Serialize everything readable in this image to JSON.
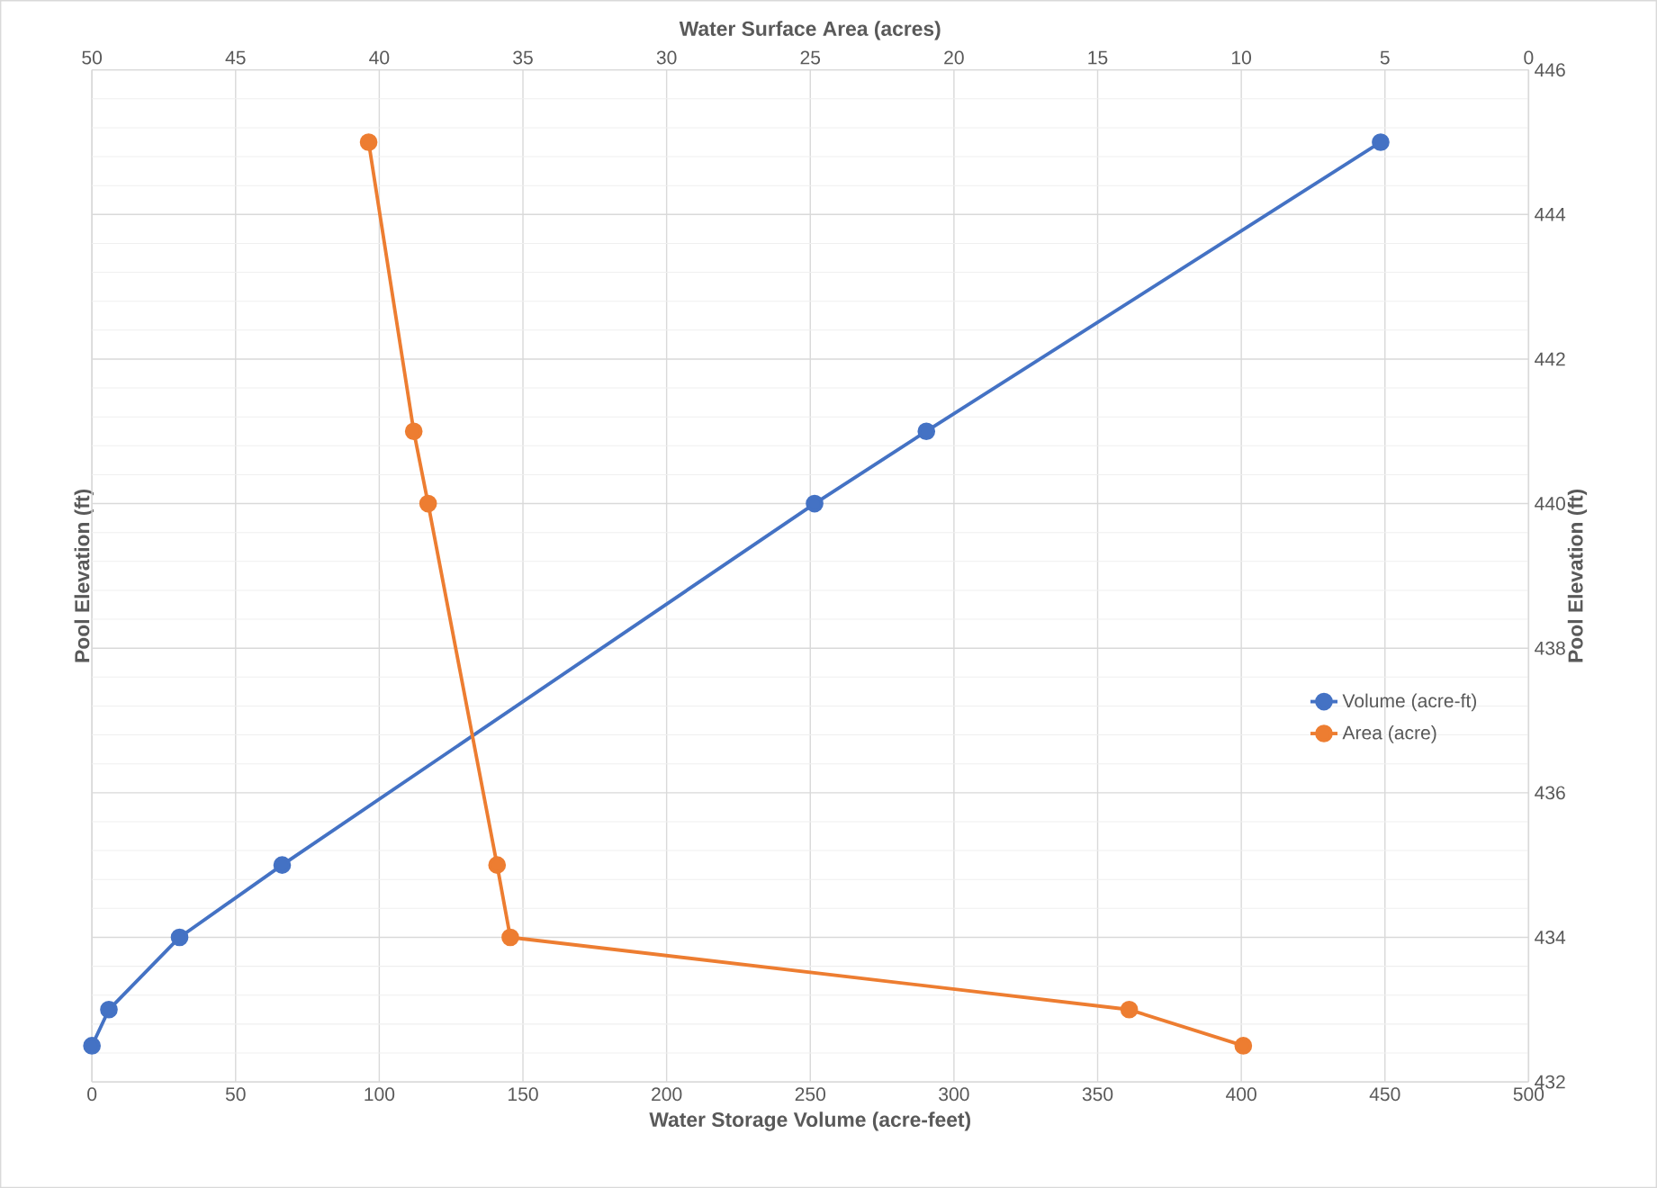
{
  "chart_data": {
    "type": "line",
    "xlabel": "Water Storage Volume (acre-feet)",
    "x2label": "Water Surface Area (acres)",
    "ylabel": "Pool Elevation (ft)",
    "y2label": "Pool Elevation (ft)",
    "xlim": [
      0,
      500
    ],
    "xticks": [
      0,
      50,
      100,
      150,
      200,
      250,
      300,
      350,
      400,
      450,
      500
    ],
    "x2lim": [
      50,
      0
    ],
    "x2ticks": [
      50,
      45,
      40,
      35,
      30,
      25,
      20,
      15,
      10,
      5,
      0
    ],
    "ylim": [
      432,
      446
    ],
    "yticks": [
      432,
      434,
      436,
      438,
      440,
      442,
      444,
      446
    ],
    "grid": true,
    "legend": "right",
    "marker": "circle",
    "line_style": "solid",
    "series": [
      {
        "name": "Volume (acre-ft)",
        "color": "#4472c4",
        "x": [
          0,
          5.9,
          30.5,
          66.2,
          251.5,
          290.4,
          448.5
        ],
        "values": [
          432.5,
          433,
          434,
          435,
          440,
          441,
          445
        ]
      },
      {
        "name": "Area (acre)",
        "color": "#ed7d31",
        "axis": "x2",
        "x": [
          9.93,
          13.9,
          35.44,
          35.9,
          38.3,
          38.8,
          40.37
        ],
        "values": [
          432.5,
          433,
          434,
          435,
          440,
          441,
          445
        ]
      }
    ]
  }
}
